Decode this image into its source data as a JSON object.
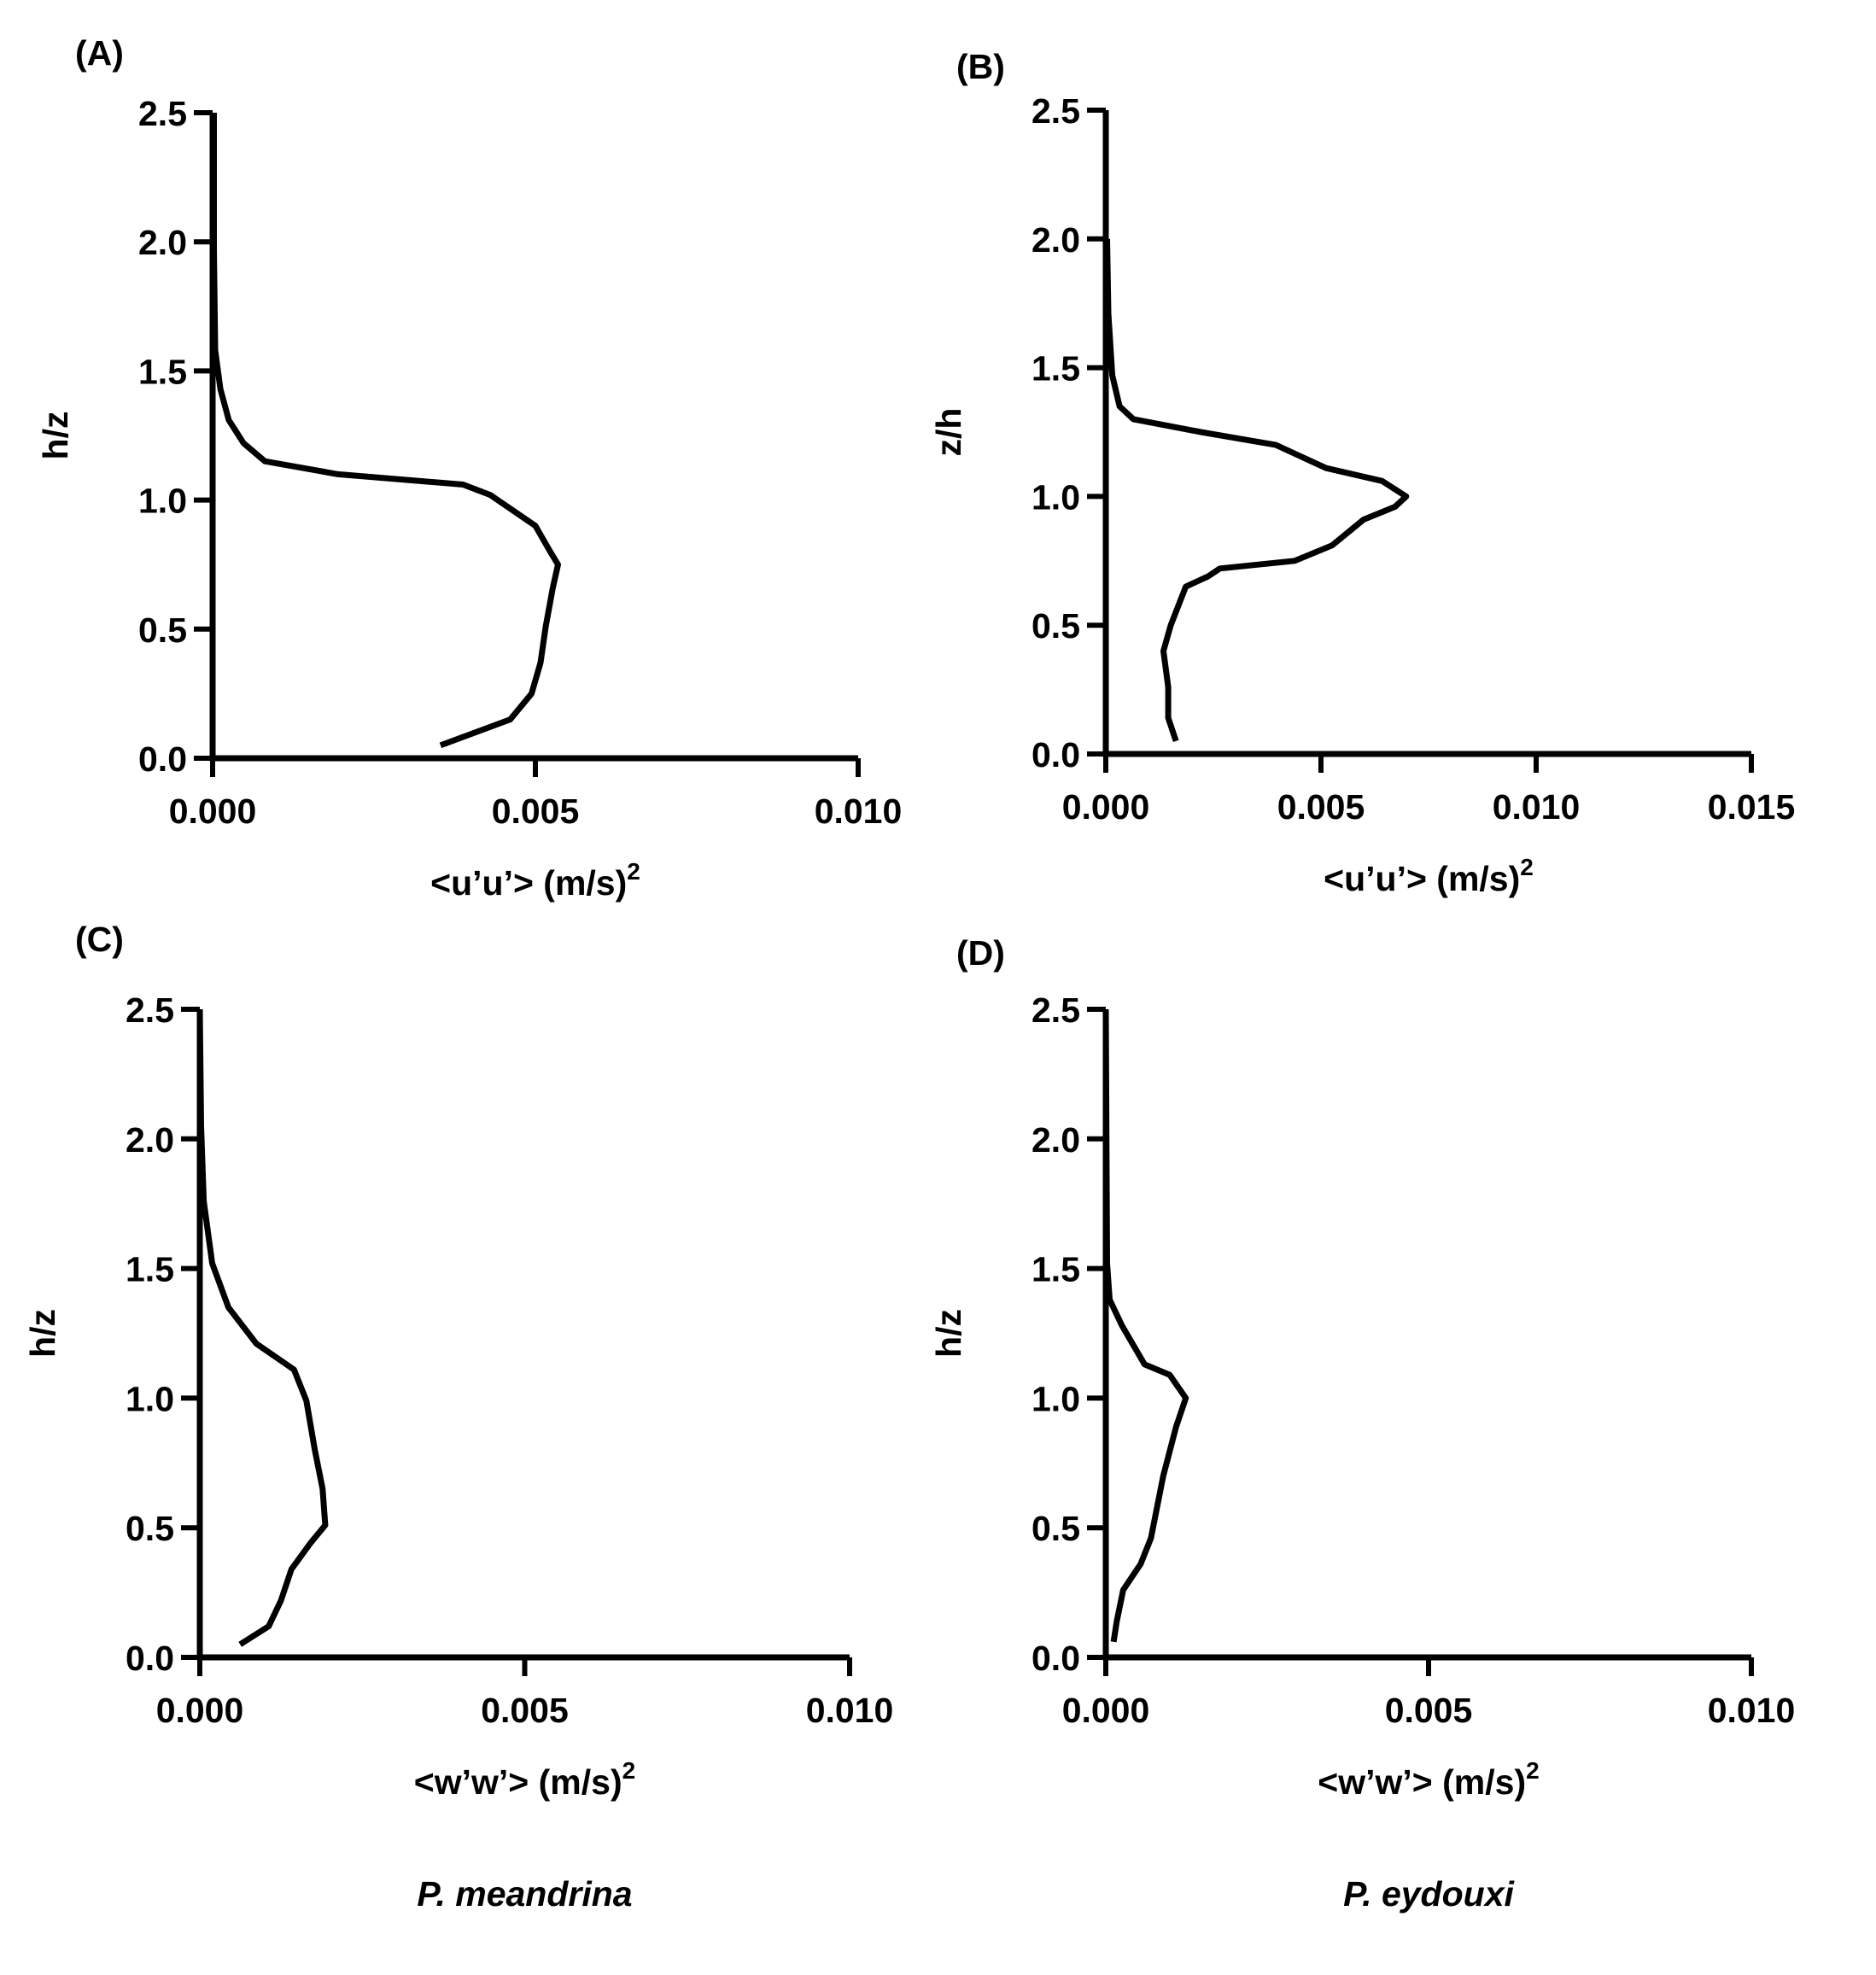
{
  "chart_data": [
    {
      "type": "line",
      "panel": "(A)",
      "x_label": "<u’u’> (m/s)",
      "x_label_sup": "2",
      "y_label": "h/z",
      "color": "#000000",
      "xlim": [
        0,
        0.01
      ],
      "xticks": [
        {
          "value": 0,
          "label": "0.000"
        },
        {
          "value": 0.005,
          "label": "0.005"
        },
        {
          "value": 0.01,
          "label": "0.010"
        }
      ],
      "ylim": [
        0,
        2.5
      ],
      "yticks": [
        {
          "value": 0,
          "label": "0.0"
        },
        0.5,
        {
          "value": 1,
          "label": "1.0"
        },
        1.5,
        {
          "value": 2,
          "label": "2.0"
        },
        2.5
      ],
      "x": [
        0.00353,
        0.00461,
        0.00494,
        0.00508,
        0.00516,
        0.00527,
        0.00535,
        0.00523,
        0.005,
        0.0043,
        0.00388,
        0.00194,
        0.00081,
        0.00048,
        0.00025,
        0.00012,
        4e-05,
        2e-05,
        2e-05
      ],
      "values": [
        0.05,
        0.15,
        0.25,
        0.37,
        0.51,
        0.66,
        0.75,
        0.8,
        0.9,
        1.02,
        1.06,
        1.1,
        1.15,
        1.22,
        1.31,
        1.43,
        1.58,
        1.97,
        2.5
      ]
    },
    {
      "type": "line",
      "panel": "(B)",
      "x_label": "<u’u’> (m/s)",
      "x_label_sup": "2",
      "y_label": "z/h",
      "color": "#000000",
      "xlim": [
        0,
        0.015
      ],
      "xticks": [
        {
          "value": 0,
          "label": "0.000"
        },
        {
          "value": 0.005,
          "label": "0.005"
        },
        {
          "value": 0.01,
          "label": "0.010"
        },
        {
          "value": 0.015,
          "label": "0.015"
        }
      ],
      "ylim": [
        0,
        2.5
      ],
      "yticks": [
        {
          "value": 0,
          "label": "0.0"
        },
        0.5,
        {
          "value": 1,
          "label": "1.0"
        },
        1.5,
        {
          "value": 2,
          "label": "2.0"
        },
        2.5
      ],
      "x": [
        0.00163,
        0.00145,
        0.00145,
        0.00134,
        0.00151,
        0.00186,
        0.00238,
        0.00265,
        0.00439,
        0.00526,
        0.00599,
        0.00672,
        0.00698,
        0.00642,
        0.00512,
        0.00395,
        0.00221,
        0.00064,
        0.00032,
        0.00015,
        6e-05,
        3e-05
      ],
      "values": [
        0.05,
        0.14,
        0.26,
        0.4,
        0.5,
        0.65,
        0.69,
        0.72,
        0.75,
        0.81,
        0.91,
        0.96,
        1.0,
        1.06,
        1.11,
        1.2,
        1.25,
        1.3,
        1.35,
        1.47,
        1.71,
        2.0
      ]
    },
    {
      "type": "line",
      "panel": "(C)",
      "x_label": "<w’w’> (m/s)",
      "x_label_sup": "2",
      "y_label": "h/z",
      "color": "#000000",
      "caption": "P. meandrina",
      "xlim": [
        0,
        0.01
      ],
      "xticks": [
        {
          "value": 0,
          "label": "0.000"
        },
        {
          "value": 0.005,
          "label": "0.005"
        },
        {
          "value": 0.01,
          "label": "0.010"
        }
      ],
      "ylim": [
        0,
        2.5
      ],
      "yticks": [
        {
          "value": 0,
          "label": "0.0"
        },
        0.5,
        {
          "value": 1,
          "label": "1.0"
        },
        1.5,
        {
          "value": 2,
          "label": "2.0"
        },
        2.5
      ],
      "x": [
        0.00062,
        0.00106,
        0.00125,
        0.00141,
        0.0017,
        0.00193,
        0.00189,
        0.00177,
        0.00164,
        0.00145,
        0.00087,
        0.00044,
        0.00019,
        6e-05,
        2e-05,
        0
      ],
      "values": [
        0.05,
        0.12,
        0.22,
        0.34,
        0.44,
        0.51,
        0.65,
        0.8,
        0.99,
        1.11,
        1.21,
        1.35,
        1.52,
        1.76,
        2.05,
        2.5
      ]
    },
    {
      "type": "line",
      "panel": "(D)",
      "x_label": "<w’w’> (m/s)",
      "x_label_sup": "2",
      "y_label": "h/z",
      "color": "#000000",
      "caption": "P. eydouxi",
      "xlim": [
        0,
        0.01
      ],
      "xticks": [
        {
          "value": 0,
          "label": "0.000"
        },
        {
          "value": 0.005,
          "label": "0.005"
        },
        {
          "value": 0.01,
          "label": "0.010"
        }
      ],
      "ylim": [
        0,
        2.5
      ],
      "yticks": [
        {
          "value": 0,
          "label": "0.0"
        },
        0.5,
        {
          "value": 1,
          "label": "1.0"
        },
        1.5,
        {
          "value": 2,
          "label": "2.0"
        },
        2.5
      ],
      "x": [
        0.00012,
        0.00017,
        0.00027,
        0.00054,
        0.0007,
        0.00089,
        0.00109,
        0.00124,
        0.00099,
        0.0006,
        0.00025,
        6e-05,
        2e-05,
        0
      ],
      "values": [
        0.06,
        0.14,
        0.26,
        0.36,
        0.46,
        0.7,
        0.89,
        1.0,
        1.09,
        1.13,
        1.28,
        1.38,
        1.52,
        2.5
      ]
    }
  ]
}
